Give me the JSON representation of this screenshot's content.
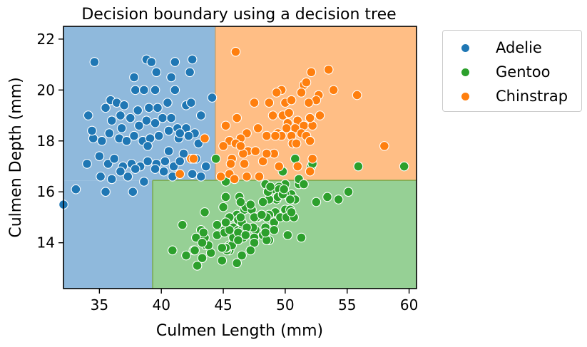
{
  "chart_data": {
    "type": "scatter",
    "title": "Decision boundary using a decision tree",
    "xlabel": "Culmen Length (mm)",
    "ylabel": "Culmen Depth (mm)",
    "xlim": [
      32.1,
      60.6
    ],
    "ylim": [
      12.2,
      22.5
    ],
    "xticks": [
      35,
      40,
      45,
      50,
      55,
      60
    ],
    "yticks": [
      14,
      16,
      18,
      20,
      22
    ],
    "grid": false,
    "legend_position": "outside-top-right",
    "legend": [
      "Adelie",
      "Gentoo",
      "Chinstrap"
    ],
    "colors": {
      "Adelie": "#1f77b4",
      "Gentoo": "#2ca02c",
      "Chinstrap": "#ff7f0e"
    },
    "regions": [
      {
        "class": "Adelie",
        "x": [
          32.1,
          44.35
        ],
        "y": [
          16.45,
          22.5
        ]
      },
      {
        "class": "Adelie",
        "x": [
          32.1,
          39.3
        ],
        "y": [
          12.2,
          16.45
        ]
      },
      {
        "class": "Chinstrap",
        "x": [
          44.35,
          60.6
        ],
        "y": [
          16.45,
          22.5
        ]
      },
      {
        "class": "Gentoo",
        "x": [
          39.3,
          60.6
        ],
        "y": [
          12.2,
          16.45
        ]
      }
    ],
    "series": [
      {
        "name": "Adelie",
        "points": [
          [
            34.6,
            21.1
          ],
          [
            38.8,
            21.2
          ],
          [
            39.2,
            21.1
          ],
          [
            41.1,
            21.1
          ],
          [
            42.5,
            21.2
          ],
          [
            37.8,
            20.5
          ],
          [
            39.6,
            20.7
          ],
          [
            40.8,
            20.5
          ],
          [
            42.3,
            20.7
          ],
          [
            37.9,
            20.0
          ],
          [
            38.6,
            20.0
          ],
          [
            39.5,
            20.0
          ],
          [
            41.1,
            20.0
          ],
          [
            35.9,
            19.6
          ],
          [
            36.4,
            19.5
          ],
          [
            37.0,
            19.4
          ],
          [
            38.1,
            19.2
          ],
          [
            39.0,
            19.3
          ],
          [
            39.7,
            19.3
          ],
          [
            40.5,
            19.5
          ],
          [
            42.0,
            19.4
          ],
          [
            42.4,
            19.5
          ],
          [
            43.2,
            19.0
          ],
          [
            34.1,
            19.0
          ],
          [
            35.5,
            19.3
          ],
          [
            36.0,
            18.8
          ],
          [
            36.7,
            19.0
          ],
          [
            37.5,
            18.9
          ],
          [
            38.2,
            18.6
          ],
          [
            38.8,
            18.8
          ],
          [
            39.5,
            18.7
          ],
          [
            40.1,
            18.9
          ],
          [
            40.8,
            18.9
          ],
          [
            41.3,
            18.5
          ],
          [
            42.0,
            18.5
          ],
          [
            42.7,
            18.3
          ],
          [
            34.5,
            18.1
          ],
          [
            35.2,
            18.0
          ],
          [
            35.8,
            18.3
          ],
          [
            36.6,
            18.1
          ],
          [
            37.2,
            18.0
          ],
          [
            37.8,
            18.2
          ],
          [
            38.5,
            18.0
          ],
          [
            39.1,
            18.1
          ],
          [
            39.8,
            18.2
          ],
          [
            40.6,
            18.4
          ],
          [
            41.4,
            18.1
          ],
          [
            42.2,
            18.2
          ],
          [
            43.0,
            17.9
          ],
          [
            34.0,
            17.1
          ],
          [
            35.0,
            17.4
          ],
          [
            35.7,
            17.1
          ],
          [
            36.2,
            17.3
          ],
          [
            36.9,
            17.0
          ],
          [
            37.6,
            17.1
          ],
          [
            38.3,
            17.0
          ],
          [
            38.9,
            17.2
          ],
          [
            39.6,
            17.1
          ],
          [
            40.3,
            17.2
          ],
          [
            41.0,
            17.0
          ],
          [
            41.8,
            17.5
          ],
          [
            42.8,
            17.3
          ],
          [
            35.1,
            16.6
          ],
          [
            36.0,
            16.5
          ],
          [
            36.7,
            16.8
          ],
          [
            37.3,
            16.6
          ],
          [
            37.9,
            16.9
          ],
          [
            38.6,
            16.4
          ],
          [
            39.5,
            16.9
          ],
          [
            40.2,
            16.8
          ],
          [
            41.5,
            17.2
          ],
          [
            42.5,
            16.7
          ],
          [
            43.6,
            17.0
          ],
          [
            35.5,
            16.0
          ],
          [
            37.7,
            16.0
          ],
          [
            32.1,
            15.5
          ],
          [
            33.1,
            16.1
          ],
          [
            40.9,
            16.6
          ],
          [
            43.2,
            16.6
          ],
          [
            34.4,
            18.4
          ],
          [
            36.8,
            18.5
          ],
          [
            38.9,
            17.8
          ],
          [
            40.6,
            17.6
          ],
          [
            41.5,
            18.3
          ],
          [
            44.1,
            19.7
          ]
        ]
      },
      {
        "name": "Gentoo",
        "points": [
          [
            46.1,
            13.2
          ],
          [
            50.0,
            16.3
          ],
          [
            48.7,
            14.1
          ],
          [
            50.0,
            15.2
          ],
          [
            47.6,
            14.5
          ],
          [
            46.5,
            13.5
          ],
          [
            45.4,
            14.6
          ],
          [
            46.7,
            15.3
          ],
          [
            43.3,
            13.4
          ],
          [
            46.8,
            15.4
          ],
          [
            40.9,
            13.7
          ],
          [
            49.0,
            16.1
          ],
          [
            45.5,
            13.7
          ],
          [
            48.4,
            14.6
          ],
          [
            45.8,
            14.6
          ],
          [
            49.3,
            15.7
          ],
          [
            42.0,
            13.5
          ],
          [
            49.2,
            15.2
          ],
          [
            46.2,
            14.5
          ],
          [
            48.7,
            15.1
          ],
          [
            50.2,
            14.3
          ],
          [
            45.1,
            14.5
          ],
          [
            46.5,
            14.5
          ],
          [
            46.3,
            15.8
          ],
          [
            42.9,
            13.1
          ],
          [
            46.1,
            15.1
          ],
          [
            44.5,
            14.3
          ],
          [
            47.8,
            15.0
          ],
          [
            48.2,
            14.3
          ],
          [
            50.0,
            15.3
          ],
          [
            47.3,
            15.3
          ],
          [
            42.8,
            14.2
          ],
          [
            45.1,
            14.5
          ],
          [
            59.6,
            17.0
          ],
          [
            49.1,
            14.8
          ],
          [
            48.4,
            16.3
          ],
          [
            42.6,
            13.7
          ],
          [
            44.4,
            17.3
          ],
          [
            44.0,
            13.6
          ],
          [
            48.7,
            15.7
          ],
          [
            42.7,
            13.7
          ],
          [
            49.6,
            16.0
          ],
          [
            45.3,
            13.7
          ],
          [
            49.6,
            15.0
          ],
          [
            50.5,
            15.9
          ],
          [
            43.6,
            13.9
          ],
          [
            45.5,
            13.9
          ],
          [
            50.5,
            15.9
          ],
          [
            44.9,
            13.3
          ],
          [
            45.2,
            15.8
          ],
          [
            46.6,
            14.2
          ],
          [
            48.5,
            14.1
          ],
          [
            45.1,
            14.4
          ],
          [
            50.1,
            15.0
          ],
          [
            46.5,
            14.4
          ],
          [
            45.0,
            15.4
          ],
          [
            43.8,
            13.9
          ],
          [
            45.5,
            15.0
          ],
          [
            43.2,
            14.5
          ],
          [
            50.4,
            15.3
          ],
          [
            45.3,
            13.8
          ],
          [
            46.2,
            14.9
          ],
          [
            45.7,
            13.9
          ],
          [
            54.3,
            15.7
          ],
          [
            45.8,
            14.2
          ],
          [
            49.8,
            16.8
          ],
          [
            46.2,
            14.4
          ],
          [
            49.5,
            16.2
          ],
          [
            43.5,
            14.2
          ],
          [
            50.7,
            15.0
          ],
          [
            47.7,
            15.0
          ],
          [
            46.4,
            15.6
          ],
          [
            48.2,
            15.6
          ],
          [
            46.5,
            14.8
          ],
          [
            46.4,
            15.0
          ],
          [
            48.6,
            16.0
          ],
          [
            47.5,
            14.2
          ],
          [
            51.1,
            16.3
          ],
          [
            45.2,
            13.8
          ],
          [
            45.2,
            16.4
          ],
          [
            49.1,
            14.5
          ],
          [
            52.5,
            15.6
          ],
          [
            47.4,
            14.6
          ],
          [
            50.0,
            15.9
          ],
          [
            44.9,
            13.8
          ],
          [
            50.8,
            17.3
          ],
          [
            43.4,
            14.4
          ],
          [
            51.3,
            14.2
          ],
          [
            47.5,
            14.0
          ],
          [
            52.1,
            17.0
          ],
          [
            47.5,
            15.0
          ],
          [
            52.2,
            17.1
          ],
          [
            45.5,
            14.5
          ],
          [
            49.5,
            16.1
          ],
          [
            44.5,
            14.7
          ],
          [
            50.8,
            15.7
          ],
          [
            49.4,
            15.8
          ],
          [
            46.9,
            14.6
          ],
          [
            48.4,
            14.4
          ],
          [
            51.1,
            16.5
          ],
          [
            48.5,
            15.0
          ],
          [
            55.9,
            17.0
          ],
          [
            47.2,
            15.5
          ],
          [
            41.7,
            14.7
          ],
          [
            53.4,
            15.8
          ],
          [
            43.3,
            14.0
          ],
          [
            48.1,
            15.1
          ],
          [
            50.5,
            15.2
          ],
          [
            49.8,
            15.9
          ],
          [
            43.5,
            15.2
          ],
          [
            51.5,
            16.3
          ],
          [
            46.2,
            14.1
          ],
          [
            55.1,
            16.0
          ],
          [
            48.8,
            16.2
          ],
          [
            47.2,
            13.7
          ],
          [
            46.8,
            14.3
          ],
          [
            50.4,
            15.7
          ],
          [
            45.2,
            14.8
          ],
          [
            49.9,
            16.1
          ]
        ]
      },
      {
        "name": "Chinstrap",
        "points": [
          [
            46.0,
            21.5
          ],
          [
            53.5,
            20.8
          ],
          [
            52.1,
            20.7
          ],
          [
            51.5,
            20.2
          ],
          [
            53.9,
            20.0
          ],
          [
            49.7,
            20.0
          ],
          [
            51.7,
            20.3
          ],
          [
            55.8,
            19.8
          ],
          [
            50.0,
            19.5
          ],
          [
            51.3,
            19.9
          ],
          [
            52.7,
            19.8
          ],
          [
            47.5,
            19.5
          ],
          [
            48.7,
            19.5
          ],
          [
            50.5,
            19.6
          ],
          [
            52.5,
            19.6
          ],
          [
            49.8,
            19.0
          ],
          [
            51.0,
            18.8
          ],
          [
            52.0,
            18.9
          ],
          [
            46.1,
            18.9
          ],
          [
            45.2,
            18.6
          ],
          [
            47.8,
            18.5
          ],
          [
            49.0,
            19.0
          ],
          [
            50.2,
            18.7
          ],
          [
            50.8,
            18.5
          ],
          [
            51.5,
            18.6
          ],
          [
            52.2,
            18.6
          ],
          [
            52.0,
            18.9
          ],
          [
            46.9,
            18.3
          ],
          [
            49.4,
            18.3
          ],
          [
            50.1,
            18.5
          ],
          [
            51.3,
            18.3
          ],
          [
            45.5,
            18.0
          ],
          [
            46.4,
            18.1
          ],
          [
            48.5,
            18.2
          ],
          [
            49.7,
            18.2
          ],
          [
            50.5,
            18.2
          ],
          [
            51.7,
            18.2
          ],
          [
            45.0,
            17.8
          ],
          [
            46.0,
            17.9
          ],
          [
            47.0,
            17.6
          ],
          [
            50.6,
            17.9
          ],
          [
            52.0,
            18.0
          ],
          [
            58.0,
            17.8
          ],
          [
            45.7,
            17.3
          ],
          [
            46.6,
            17.5
          ],
          [
            47.6,
            17.6
          ],
          [
            49.1,
            17.5
          ],
          [
            52.2,
            17.3
          ],
          [
            42.4,
            17.3
          ],
          [
            43.5,
            18.1
          ],
          [
            46.7,
            17.1
          ],
          [
            46.4,
            17.8
          ],
          [
            45.6,
            17.1
          ],
          [
            48.2,
            17.2
          ],
          [
            49.5,
            17.0
          ],
          [
            51.0,
            17.0
          ],
          [
            52.0,
            16.8
          ],
          [
            44.8,
            16.6
          ],
          [
            45.5,
            16.7
          ],
          [
            46.9,
            16.6
          ],
          [
            47.9,
            16.6
          ],
          [
            45.9,
            16.5
          ],
          [
            41.5,
            16.7
          ],
          [
            49.2,
            18.2
          ],
          [
            52.8,
            19.0
          ],
          [
            50.3,
            19.1
          ],
          [
            48.5,
            17.5
          ],
          [
            49.3,
            19.9
          ],
          [
            50.9,
            17.9
          ],
          [
            51.9,
            19.5
          ],
          [
            42.6,
            17.3
          ]
        ]
      }
    ]
  }
}
